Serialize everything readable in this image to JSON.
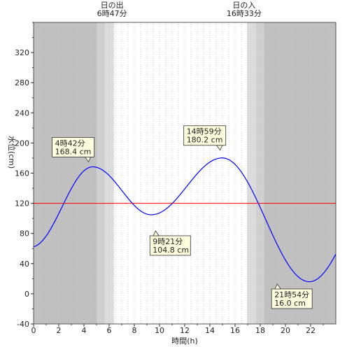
{
  "chart_data": {
    "type": "line",
    "xlabel": "時間(h)",
    "ylabel": "水位(cm)",
    "xlim": [
      0,
      24
    ],
    "ylim": [
      -40,
      360
    ],
    "x_ticks": [
      "0",
      "2",
      "4",
      "6",
      "8",
      "10",
      "12",
      "14",
      "16",
      "18",
      "20",
      "22"
    ],
    "y_ticks": [
      "-40",
      "0",
      "40",
      "80",
      "120",
      "160",
      "200",
      "240",
      "280",
      "320"
    ],
    "grid": "vertical dotted every 0.5h",
    "reference_line": {
      "y": 120,
      "color": "#ff0000"
    },
    "series_color": "#0000ff",
    "sunrise": {
      "label": "日の出",
      "time": "6時47分",
      "hour": 6.783
    },
    "sunset": {
      "label": "日の入",
      "time": "16時33分",
      "hour": 16.55
    },
    "night_color": "#c0c0c0",
    "twilight_color": "#dcdcdc",
    "extrema": [
      {
        "time": "4時42分",
        "level": "168.4 cm",
        "hour": 4.7,
        "value": 168.4
      },
      {
        "time": "9時21分",
        "level": "104.8 cm",
        "hour": 9.35,
        "value": 104.8
      },
      {
        "time": "14時59分",
        "level": "180.2 cm",
        "hour": 14.983,
        "value": 180.2
      },
      {
        "time": "21時54分",
        "level": "16.0 cm",
        "hour": 21.9,
        "value": 16.0
      }
    ],
    "series": [
      {
        "x": [
          0,
          24
        ],
        "y": [
          78,
          55
        ],
        "note_boundary_values": true
      }
    ]
  }
}
